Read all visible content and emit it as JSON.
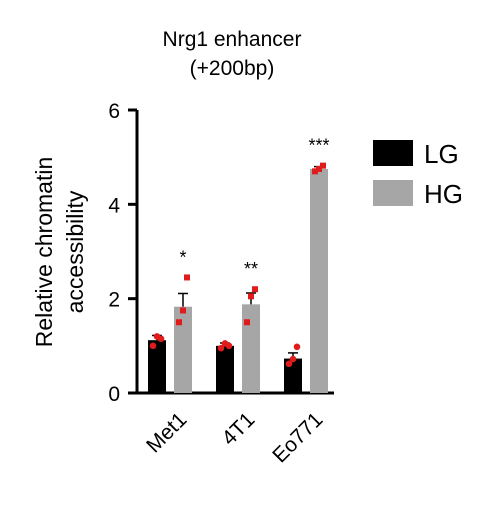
{
  "chart_data": {
    "type": "bar",
    "title_lines": [
      "Nrg1 enhancer",
      "(+200bp)"
    ],
    "ylabel_lines": [
      "Relative chromatin",
      "accessibility"
    ],
    "xlabel": "",
    "categories": [
      "Met1",
      "4T1",
      "Eo771"
    ],
    "ylim": [
      0,
      6
    ],
    "yticks": [
      "0",
      "2",
      "4",
      "6"
    ],
    "grid": false,
    "legend_position": "right",
    "series": [
      {
        "name": "LG",
        "color": "#000000",
        "values": [
          1.12,
          1.0,
          0.73
        ],
        "errors": [
          0.1,
          0.06,
          0.12
        ],
        "points": [
          [
            1.0,
            1.2,
            1.15
          ],
          [
            0.95,
            1.05,
            1.0
          ],
          [
            0.62,
            0.72,
            0.98
          ]
        ]
      },
      {
        "name": "HG",
        "color": "#a6a6a6",
        "values": [
          1.83,
          1.88,
          4.75
        ],
        "errors": [
          0.28,
          0.24,
          0.05
        ],
        "points": [
          [
            1.5,
            1.75,
            2.45
          ],
          [
            1.5,
            2.05,
            2.2
          ],
          [
            4.7,
            4.75,
            4.82
          ]
        ]
      }
    ],
    "point_color": "#e01b1b",
    "significance": [
      "*",
      "**",
      "***"
    ]
  }
}
